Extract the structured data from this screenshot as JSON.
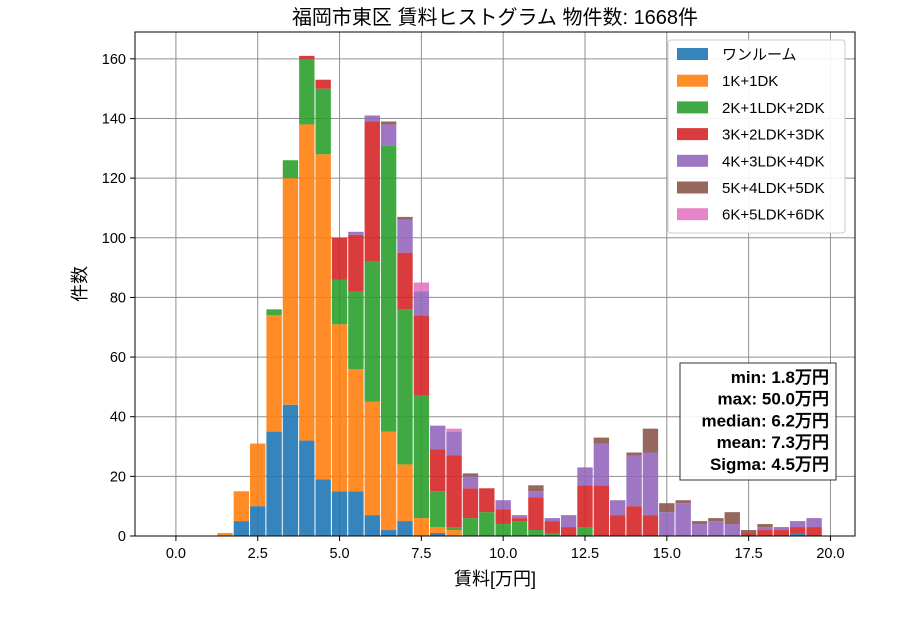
{
  "chart_data": {
    "type": "bar",
    "stacked": true,
    "title": "福岡市東区 賃料ヒストグラム 物件数: 1668件",
    "xlabel": "賃料[万円]",
    "ylabel": "件数",
    "xlim": [
      -1.25,
      20.75
    ],
    "ylim": [
      0,
      169
    ],
    "xticks": [
      0,
      2.5,
      5,
      7.5,
      10,
      12.5,
      15,
      17.5,
      20
    ],
    "xtick_labels": [
      "0.0",
      "2.5",
      "5.0",
      "7.5",
      "10.0",
      "12.5",
      "15.0",
      "17.5",
      "20.0"
    ],
    "yticks": [
      0,
      20,
      40,
      60,
      80,
      100,
      120,
      140,
      160
    ],
    "ytick_labels": [
      "0",
      "20",
      "40",
      "60",
      "80",
      "100",
      "120",
      "140",
      "160"
    ],
    "grid": true,
    "legend_position": "top-right",
    "x": [
      1.5,
      2,
      2.5,
      3,
      3.5,
      4,
      4.5,
      5,
      5.5,
      6,
      6.5,
      7,
      7.5,
      8,
      8.5,
      9,
      9.5,
      10,
      10.5,
      11,
      11.5,
      12,
      12.5,
      13,
      13.5,
      14,
      14.5,
      15,
      15.5,
      16,
      16.5,
      17,
      17.5,
      18,
      18.5,
      19,
      19.5
    ],
    "series": [
      {
        "name": "ワンルーム",
        "color": "#1f77b4",
        "values": [
          0,
          5,
          10,
          35,
          44,
          32,
          19,
          15,
          15,
          7,
          2,
          5,
          0,
          1,
          0,
          0,
          0,
          0,
          0,
          0,
          0,
          0,
          0,
          0,
          0,
          0,
          0,
          0,
          0,
          0,
          0,
          0,
          0,
          0,
          0,
          1,
          0
        ]
      },
      {
        "name": "1K+1DK",
        "color": "#ff7f0e",
        "values": [
          1,
          10,
          21,
          39,
          76,
          106,
          109,
          56,
          41,
          38,
          33,
          19,
          6,
          2,
          2,
          0,
          0,
          0,
          0,
          0,
          0,
          0,
          0,
          0,
          0,
          0,
          0,
          0,
          0,
          0,
          0,
          0,
          0,
          0,
          0,
          0,
          0
        ]
      },
      {
        "name": "2K+1LDK+2DK",
        "color": "#2ca02c",
        "values": [
          0,
          0,
          0,
          2,
          6,
          22,
          22,
          15,
          26,
          47,
          96,
          52,
          41,
          12,
          1,
          6,
          8,
          4,
          5,
          2,
          1,
          0,
          3,
          0,
          0,
          0,
          0,
          0,
          0,
          0,
          0,
          0,
          0,
          0,
          0,
          0,
          0
        ]
      },
      {
        "name": "3K+2LDK+3DK",
        "color": "#d62728",
        "values": [
          0,
          0,
          0,
          0,
          0,
          1,
          3,
          14,
          19,
          47,
          0,
          19,
          27,
          14,
          24,
          10,
          8,
          5,
          1,
          11,
          4,
          3,
          14,
          17,
          7,
          10,
          7,
          0,
          0,
          0,
          0,
          0,
          1,
          2,
          2,
          2,
          3
        ]
      },
      {
        "name": "4K+3LDK+4DK",
        "color": "#9467bd",
        "values": [
          0,
          0,
          0,
          0,
          0,
          0,
          0,
          0,
          1,
          2,
          7,
          11,
          8,
          8,
          8,
          4,
          0,
          3,
          1,
          2,
          1,
          4,
          6,
          14,
          5,
          17,
          21,
          8,
          11,
          4,
          5,
          4,
          0,
          1,
          1,
          2,
          3
        ]
      },
      {
        "name": "5K+4LDK+5DK",
        "color": "#8c564b",
        "values": [
          0,
          0,
          0,
          0,
          0,
          0,
          0,
          0,
          0,
          0,
          1,
          1,
          0,
          0,
          0,
          1,
          0,
          0,
          0,
          2,
          0,
          0,
          0,
          2,
          0,
          1,
          8,
          3,
          1,
          1,
          1,
          4,
          1,
          1,
          0,
          0,
          0
        ]
      },
      {
        "name": "6K+5LDK+6DK",
        "color": "#e377c2",
        "values": [
          0,
          0,
          0,
          0,
          0,
          0,
          0,
          0,
          0,
          0,
          0,
          0,
          3,
          0,
          1,
          0,
          0,
          0,
          0,
          0,
          0,
          0,
          0,
          0,
          0,
          0,
          0,
          0,
          0,
          0,
          0,
          0,
          0,
          0,
          0,
          0,
          0
        ]
      }
    ],
    "annotations": [
      "min: 1.8万円",
      "max: 50.0万円",
      "median: 6.2万円",
      "mean: 7.3万円",
      "Sigma: 4.5万円"
    ]
  }
}
